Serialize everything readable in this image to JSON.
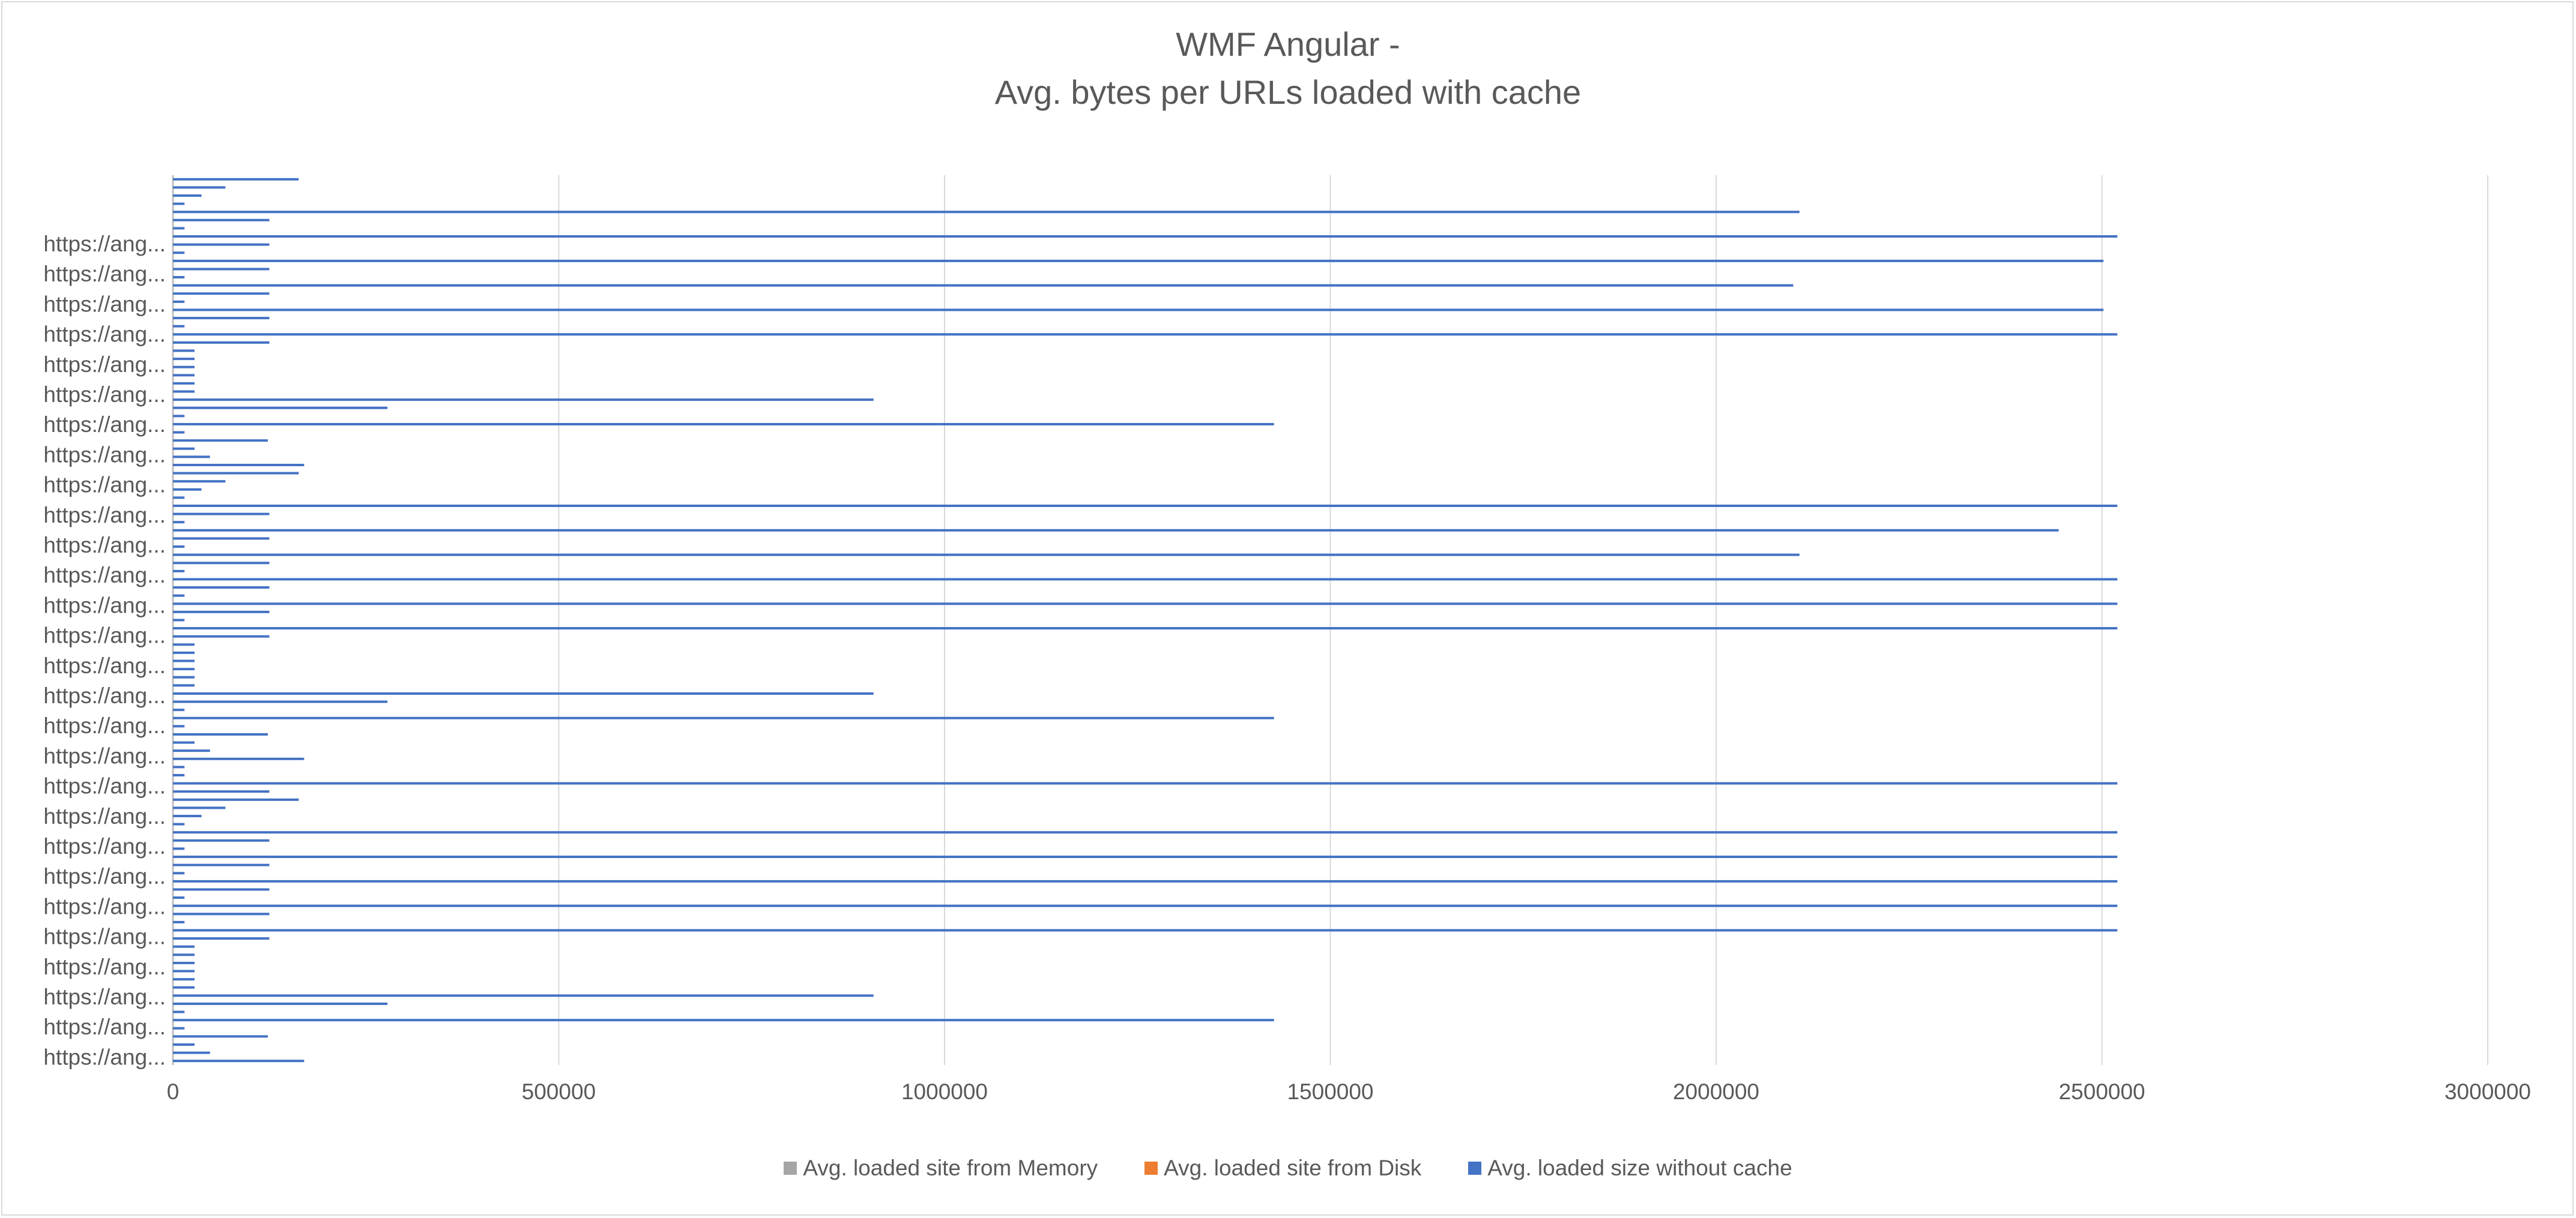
{
  "chart_data": {
    "type": "bar",
    "orientation": "horizontal",
    "title": [
      "WMF Angular -",
      "Avg. bytes per URLs loaded with cache"
    ],
    "category_label": "https://ang...",
    "category_label_count": 28,
    "x_ticks": [
      "0",
      "500000",
      "1000000",
      "1500000",
      "2000000",
      "2500000",
      "3000000"
    ],
    "xlim": [
      0,
      3000000
    ],
    "grid": true,
    "legend_position": "bottom",
    "series": [
      {
        "name": "Avg. loaded site from Memory",
        "color": "#a5a5a5"
      },
      {
        "name": "Avg. loaded site from Disk",
        "color": "#ed7d31"
      },
      {
        "name": "Avg. loaded size without cache",
        "color": "#4472c4",
        "values": [
          163000,
          68000,
          37000,
          15000,
          2108000,
          125000,
          15000,
          2520000,
          125000,
          15000,
          2502000,
          125000,
          15000,
          2100000,
          125000,
          15000,
          2502000,
          125000,
          15000,
          2520000,
          125000,
          28000,
          28000,
          28000,
          28000,
          28000,
          28000,
          908000,
          278000,
          15000,
          1427000,
          15000,
          123000,
          28000,
          48000,
          170000,
          163000,
          68000,
          37000,
          15000,
          2520000,
          125000,
          15000,
          2444000,
          125000,
          15000,
          2108000,
          125000,
          15000,
          2520000,
          125000,
          15000,
          2520000,
          125000,
          15000,
          2520000,
          125000,
          28000,
          28000,
          28000,
          28000,
          28000,
          28000,
          908000,
          278000,
          15000,
          1427000,
          15000,
          123000,
          28000,
          48000,
          170000,
          15000,
          15000,
          2520000,
          125000,
          163000,
          68000,
          37000,
          15000,
          2520000,
          125000,
          15000,
          2520000,
          125000,
          15000,
          2520000,
          125000,
          15000,
          2520000,
          125000,
          15000,
          2520000,
          125000,
          28000,
          28000,
          28000,
          28000,
          28000,
          28000,
          908000,
          278000,
          15000,
          1427000,
          15000,
          123000,
          28000,
          48000,
          170000
        ]
      }
    ]
  }
}
